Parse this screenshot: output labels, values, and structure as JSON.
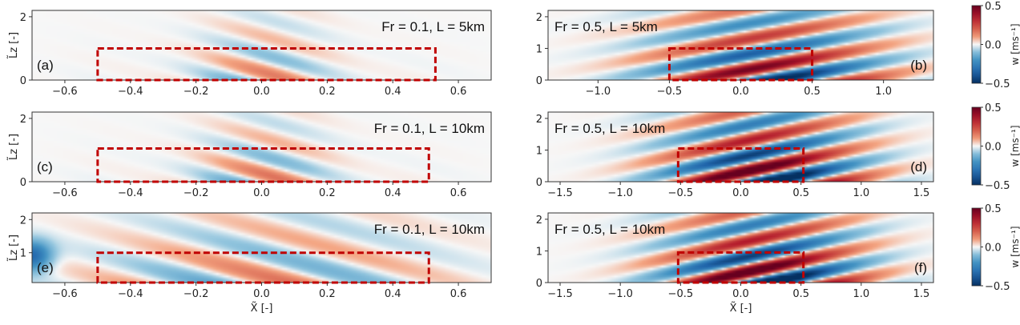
{
  "chart_data": {
    "type": "heatmap",
    "rows": [
      {
        "panels": [
          {
            "id": "a",
            "annotation": "Fr = 0.1, L = 5km",
            "panel_label": "(a)",
            "xlim": [
              -0.7,
              0.7
            ],
            "ylim": [
              0,
              2.2
            ],
            "xticks": [
              -0.6,
              -0.4,
              -0.2,
              0.0,
              0.2,
              0.4,
              0.6
            ],
            "xticklabels": [
              "−0.6",
              "−0.4",
              "−0.2",
              "0.0",
              "0.2",
              "0.4",
              "0.6"
            ],
            "yticks": [
              0,
              2
            ],
            "yticklabels": [
              "0",
              "2"
            ],
            "ylabel": "L̃z [-]",
            "xlabel": "",
            "box": [
              -0.5,
              0.53,
              0,
              1.0
            ],
            "wave": "fr01",
            "amp": 0.45
          },
          {
            "id": "b",
            "annotation": "Fr = 0.5, L = 5km",
            "panel_label": "(b)",
            "xlim": [
              -1.35,
              1.35
            ],
            "ylim": [
              0,
              2.2
            ],
            "xticks": [
              -1.0,
              -0.5,
              0.0,
              0.5,
              1.0
            ],
            "xticklabels": [
              "−1.0",
              "−0.5",
              "0.0",
              "0.5",
              "1.0"
            ],
            "yticks": [
              0,
              1,
              2
            ],
            "yticklabels": [
              "0",
              "1",
              "2"
            ],
            "ylabel": "",
            "xlabel": "",
            "box": [
              -0.5,
              0.5,
              0,
              1.0
            ],
            "wave": "fr05",
            "amp": 0.8
          }
        ],
        "colorbar": {
          "ticks": [
            0.5,
            0.0,
            -0.5
          ],
          "ticklabels": [
            "0.5",
            "0.0",
            "−0.5"
          ],
          "label": "w [ms⁻¹]"
        }
      },
      {
        "panels": [
          {
            "id": "c",
            "annotation": "Fr = 0.1, L = 10km",
            "panel_label": "(c)",
            "xlim": [
              -0.7,
              0.7
            ],
            "ylim": [
              0,
              2.2
            ],
            "xticks": [
              -0.6,
              -0.4,
              -0.2,
              0.0,
              0.2,
              0.4,
              0.6
            ],
            "xticklabels": [
              "−0.6",
              "−0.4",
              "−0.2",
              "0.0",
              "0.2",
              "0.4",
              "0.6"
            ],
            "yticks": [
              0,
              2
            ],
            "yticklabels": [
              "0",
              "2"
            ],
            "ylabel": "L̃z [-]",
            "xlabel": "",
            "box": [
              -0.5,
              0.51,
              0,
              1.05
            ],
            "wave": "fr01",
            "amp": 0.5
          },
          {
            "id": "d",
            "annotation": "Fr = 0.5, L = 10km",
            "panel_label": "(d)",
            "xlim": [
              -1.6,
              1.6
            ],
            "ylim": [
              0,
              2.2
            ],
            "xticks": [
              -1.5,
              -1.0,
              -0.5,
              0.0,
              0.5,
              1.0,
              1.5
            ],
            "xticklabels": [
              "−1.5",
              "−1.0",
              "−0.5",
              "0.0",
              "0.5",
              "1.0",
              "1.5"
            ],
            "yticks": [
              0,
              1,
              2
            ],
            "yticklabels": [
              "0",
              "1",
              "2"
            ],
            "ylabel": "",
            "xlabel": "",
            "box": [
              -0.52,
              0.52,
              0,
              1.05
            ],
            "wave": "fr05",
            "amp": 1.0
          }
        ],
        "colorbar": {
          "ticks": [
            0.5,
            0.0,
            -0.5
          ],
          "ticklabels": [
            "0.5",
            "0.0",
            "−0.5"
          ],
          "label": "w [ms⁻¹]"
        }
      },
      {
        "panels": [
          {
            "id": "e",
            "annotation": "Fr = 0.1, L = 10km",
            "panel_label": "(e)",
            "xlim": [
              -0.7,
              0.7
            ],
            "ylim": [
              0.1,
              2.2
            ],
            "xticks": [
              -0.6,
              -0.4,
              -0.2,
              0.0,
              0.2,
              0.4,
              0.6
            ],
            "xticklabels": [
              "−0.6",
              "−0.4",
              "−0.2",
              "0.0",
              "0.2",
              "0.4",
              "0.6"
            ],
            "yticks": [
              1,
              2
            ],
            "yticklabels": [
              "1",
              "2"
            ],
            "ylabel": "L̃z [-]",
            "xlabel": "X̃ [-]",
            "box": [
              -0.5,
              0.51,
              0.1,
              1.0
            ],
            "wave": "fr01e",
            "amp": 0.55
          },
          {
            "id": "f",
            "annotation": "Fr = 0.5, L = 10km",
            "panel_label": "(f)",
            "xlim": [
              -1.6,
              1.6
            ],
            "ylim": [
              0,
              2.2
            ],
            "xticks": [
              -1.5,
              -1.0,
              -0.5,
              0.0,
              0.5,
              1.0,
              1.5
            ],
            "xticklabels": [
              "−1.5",
              "−1.0",
              "−0.5",
              "0.0",
              "0.5",
              "1.0",
              "1.5"
            ],
            "yticks": [
              0,
              1,
              2
            ],
            "yticklabels": [
              "0",
              "1",
              "2"
            ],
            "ylabel": "",
            "xlabel": "X̃ [-]",
            "box": [
              -0.52,
              0.52,
              0,
              0.95
            ],
            "wave": "fr05",
            "amp": 1.0
          }
        ],
        "colorbar": {
          "ticks": [
            0.5,
            0.0,
            -0.5
          ],
          "ticklabels": [
            "0.5",
            "0.0",
            "−0.5"
          ],
          "label": "w [ms⁻¹]"
        }
      }
    ],
    "colormap": {
      "low": "#053061",
      "mid": "#f7f7f7",
      "high": "#67001f",
      "vmin": -0.5,
      "vmax": 0.5
    },
    "box_color": "#c00000"
  }
}
